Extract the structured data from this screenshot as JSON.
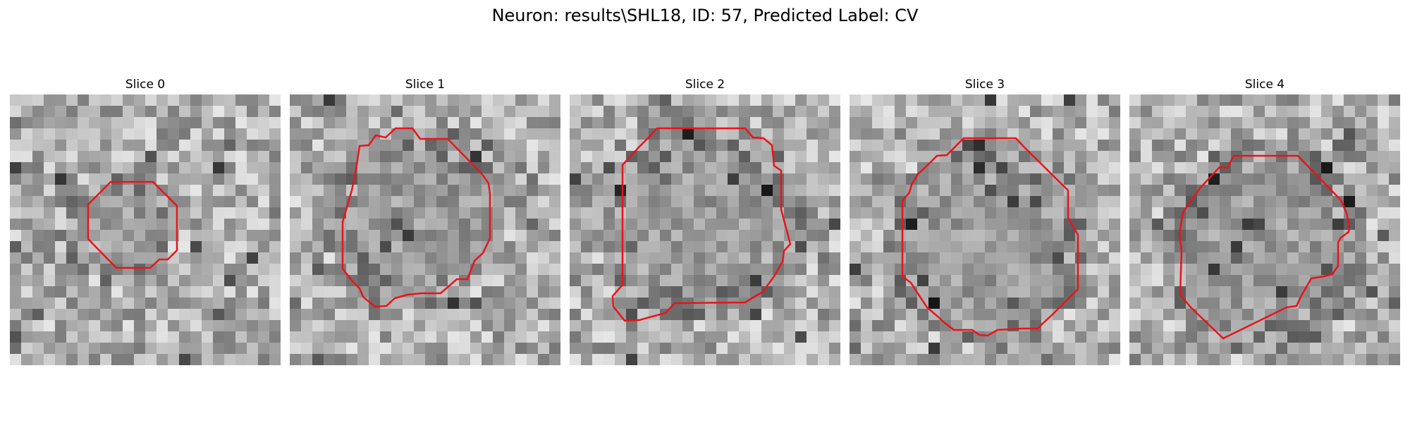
{
  "figure": {
    "title": "Neuron: results\\SHL18, ID: 57, Predicted Label: CV"
  },
  "panels": [
    {
      "title": "Slice 0",
      "contour_color": "#e8141c"
    },
    {
      "title": "Slice 1",
      "contour_color": "#e8141c"
    },
    {
      "title": "Slice 2",
      "contour_color": "#e8141c"
    },
    {
      "title": "Slice 3",
      "contour_color": "#e8141c"
    },
    {
      "title": "Slice 4",
      "contour_color": "#e8141c"
    }
  ]
}
